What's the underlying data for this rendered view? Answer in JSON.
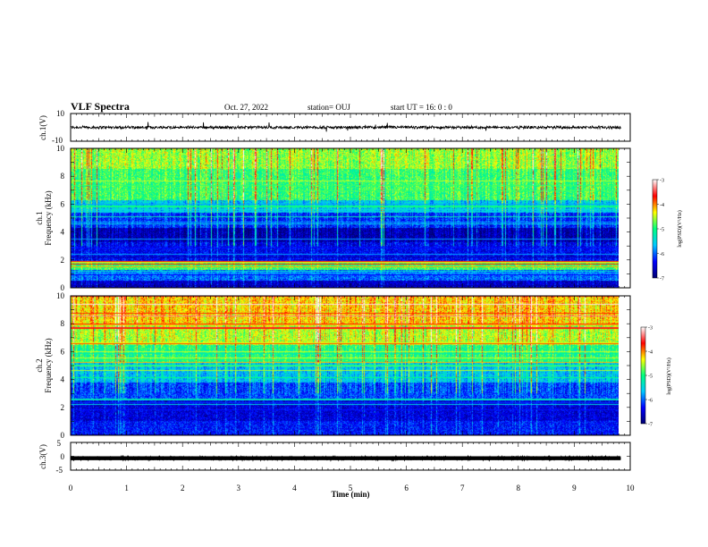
{
  "header": {
    "title": "VLF Spectra",
    "date": "Oct. 27, 2022",
    "station": "station= OUJ",
    "start": "start  UT =   16: 0  : 0"
  },
  "chart_data": [
    {
      "type": "line",
      "name": "ch1-waveform",
      "ylabel": "ch.1(V)",
      "ylim": [
        -10,
        10
      ],
      "yticks": [
        "10",
        "-10"
      ],
      "xlim": [
        0,
        10
      ],
      "x_extent": [
        0,
        9.83
      ],
      "level": 0.0,
      "amplitude": 1.2
    },
    {
      "type": "heatmap",
      "name": "ch1-spectrogram",
      "ylabel_top": "ch.1",
      "ylabel": "Frequency (kHz)",
      "ylim": [
        0,
        10
      ],
      "yticks": [
        "0",
        "2",
        "4",
        "6",
        "8",
        "10"
      ],
      "xlim": [
        0,
        10
      ],
      "x_extent": [
        0,
        9.83
      ],
      "colorbar": {
        "range": [
          -7,
          -3
        ],
        "ticks": [
          "-3",
          "-4",
          "-5",
          "-6",
          "-7"
        ],
        "label": "log(PSD)(V²/Hz)",
        "colors": [
          "#000070",
          "#0000ff",
          "#00c8ff",
          "#00ff80",
          "#ffff00",
          "#ff0000",
          "#ffffff"
        ]
      },
      "bands": [
        {
          "from": 0,
          "to": 0.5,
          "level": -6.6
        },
        {
          "from": 0.5,
          "to": 1.3,
          "level": -6.0
        },
        {
          "from": 1.3,
          "to": 1.9,
          "level": -4.9
        },
        {
          "from": 1.9,
          "to": 3.3,
          "level": -6.4
        },
        {
          "from": 3.3,
          "to": 4.3,
          "level": -6.7
        },
        {
          "from": 4.3,
          "to": 5.4,
          "level": -6.2
        },
        {
          "from": 5.4,
          "to": 6.3,
          "level": -5.6
        },
        {
          "from": 6.3,
          "to": 8.5,
          "level": -4.9
        },
        {
          "from": 8.5,
          "to": 10,
          "level": -4.6
        }
      ]
    },
    {
      "type": "heatmap",
      "name": "ch2-spectrogram",
      "ylabel_top": "ch.2",
      "ylabel": "Frequency (kHz)",
      "ylim": [
        0,
        10
      ],
      "yticks": [
        "0",
        "2",
        "4",
        "6",
        "8",
        "10"
      ],
      "xlim": [
        0,
        10
      ],
      "x_extent": [
        0,
        9.83
      ],
      "colorbar": {
        "range": [
          -7,
          -3
        ],
        "ticks": [
          "-3",
          "-4",
          "-5",
          "-6",
          "-7"
        ],
        "label": "log(PSD)(V²/Hz)",
        "colors": [
          "#000070",
          "#0000ff",
          "#00c8ff",
          "#00ff80",
          "#ffff00",
          "#ff0000",
          "#ffffff"
        ]
      },
      "bands": [
        {
          "from": 0,
          "to": 1.0,
          "level": -6.3
        },
        {
          "from": 1.0,
          "to": 2.5,
          "level": -6.5
        },
        {
          "from": 2.5,
          "to": 3.8,
          "level": -6.1
        },
        {
          "from": 3.8,
          "to": 5.2,
          "level": -5.6
        },
        {
          "from": 5.2,
          "to": 6.5,
          "level": -5.0
        },
        {
          "from": 6.5,
          "to": 8.0,
          "level": -4.5
        },
        {
          "from": 8.0,
          "to": 10,
          "level": -4.2
        }
      ]
    },
    {
      "type": "line",
      "name": "ch3-waveform",
      "ylabel": "ch.3(V)",
      "ylim": [
        -5,
        5
      ],
      "yticks": [
        "5",
        "0",
        "-5"
      ],
      "xlim": [
        0,
        10
      ],
      "x_extent": [
        0,
        9.83
      ],
      "level": -0.7,
      "amplitude": 0.35
    }
  ],
  "xaxis": {
    "label": "Time (min)",
    "ticks": [
      "0",
      "1",
      "2",
      "3",
      "4",
      "5",
      "6",
      "7",
      "8",
      "9",
      "10"
    ]
  }
}
